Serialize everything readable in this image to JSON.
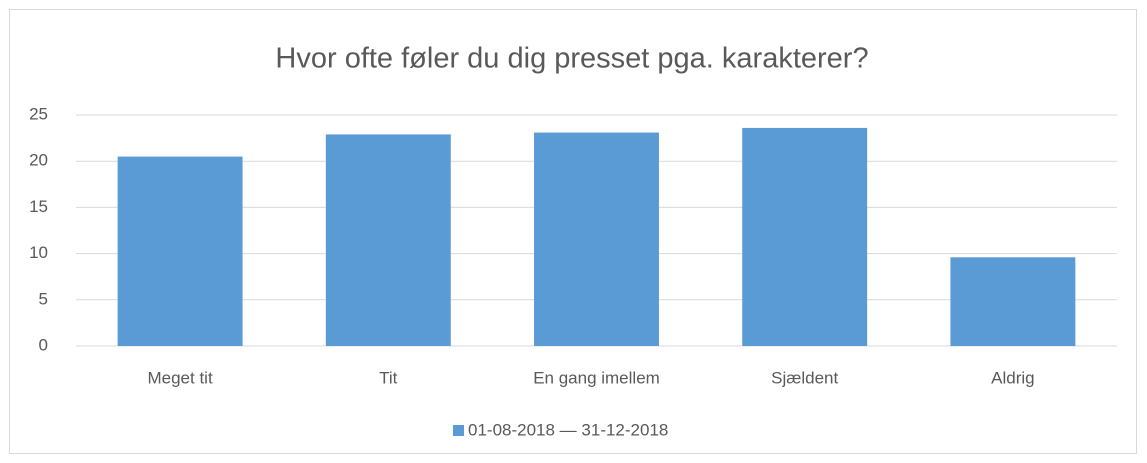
{
  "chart_data": {
    "type": "bar",
    "title": "Hvor ofte føler du dig presset pga. karakterer?",
    "categories": [
      "Meget tit",
      "Tit",
      "En gang imellem",
      "Sjældent",
      "Aldrig"
    ],
    "series": [
      {
        "name": "01-08-2018 — 31-12-2018",
        "color": "#5b9bd5",
        "values": [
          20.5,
          22.9,
          23.1,
          23.6,
          9.6
        ]
      }
    ],
    "ylim": [
      0,
      25
    ],
    "yticks": [
      0,
      5,
      10,
      15,
      20,
      25
    ],
    "grid": true,
    "legend": "bottom"
  }
}
